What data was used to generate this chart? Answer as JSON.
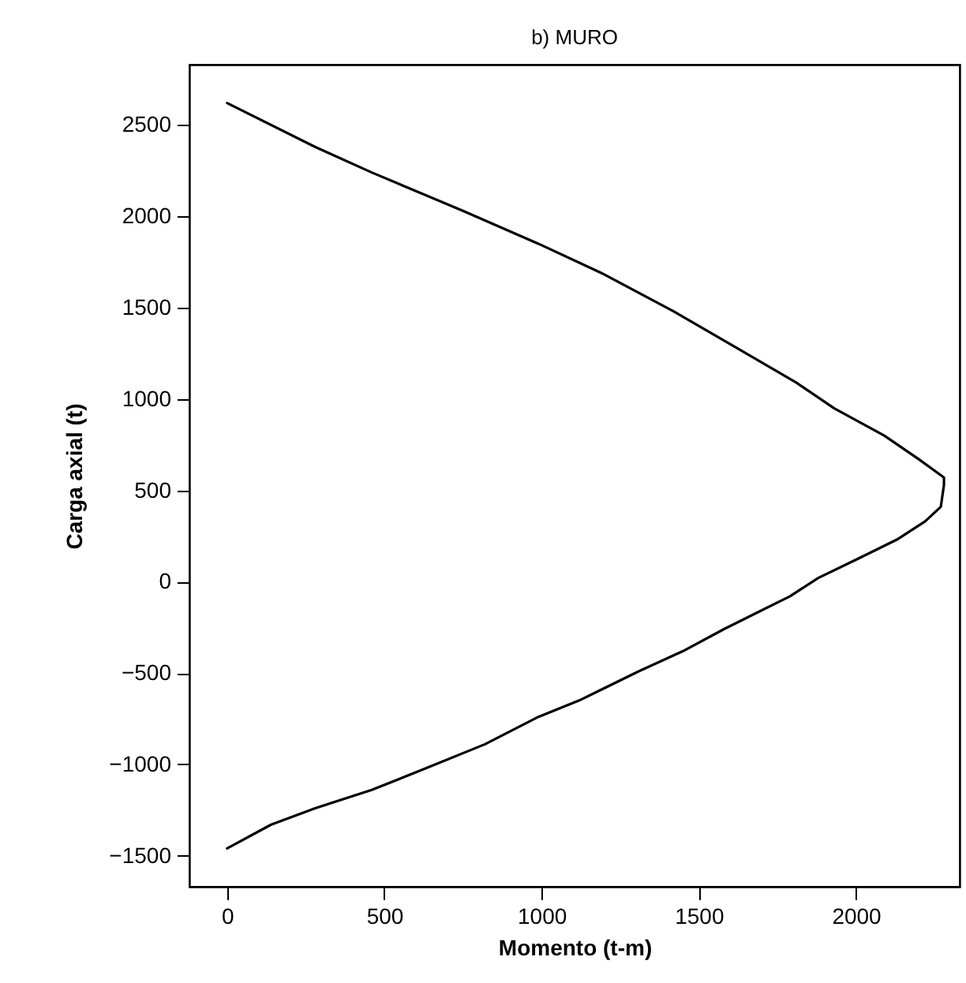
{
  "chart_data": {
    "type": "line",
    "title": "b)  MURO",
    "xlabel": "Momento (t-m)",
    "ylabel": "Carga axial  (t)",
    "xlim": [
      -120,
      2330
    ],
    "ylim": [
      -1670,
      2830
    ],
    "xticks": [
      0,
      500,
      1000,
      1500,
      2000
    ],
    "yticks": [
      -1500,
      -1000,
      -500,
      0,
      500,
      1000,
      1500,
      2000,
      2500
    ],
    "grid": false,
    "marker": "none",
    "line_style": "solid",
    "series": [
      {
        "color": "#000000",
        "x": [
          0,
          280,
          460,
          750,
          990,
          1190,
          1420,
          1630,
          1810,
          1930,
          2090,
          2200,
          2280,
          2280,
          2270,
          2220,
          2130,
          2000,
          1880,
          1790,
          1580,
          1450,
          1310,
          1120,
          990,
          820,
          620,
          460,
          280,
          140,
          0
        ],
        "values": [
          2620,
          2380,
          2240,
          2030,
          1850,
          1690,
          1480,
          1270,
          1090,
          950,
          800,
          670,
          570,
          530,
          410,
          330,
          230,
          120,
          20,
          -80,
          -260,
          -380,
          -490,
          -650,
          -740,
          -890,
          -1030,
          -1140,
          -1240,
          -1330,
          -1460
        ]
      }
    ]
  }
}
